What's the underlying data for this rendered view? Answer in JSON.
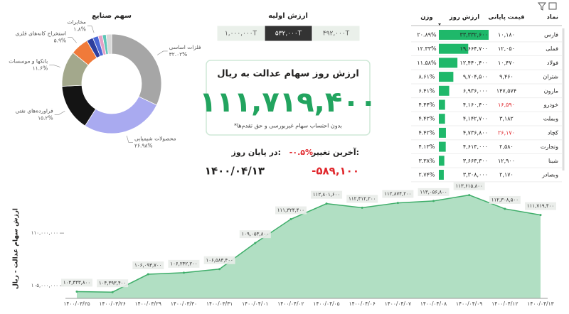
{
  "chart_data": [
    {
      "type": "pie",
      "title": "سهم صنایع",
      "categories": [
        "فلزات اساسی",
        "محصولات شیمیایی",
        "فراورده‌های نفتی",
        "بانکها و موسسات",
        "استخراج کانه‌های فلزی",
        null,
        "مخابرات",
        null,
        null,
        null
      ],
      "values": [
        32.02,
        26.98,
        15.2,
        11.6,
        5.9,
        2.1,
        1.8,
        1.4,
        1.2,
        1.8
      ],
      "value_labels": [
        "۳۲.۰۲%",
        "۲۶.۹۸%",
        "۱۵.۲%",
        "۱۱.۶%",
        "۵.۹%",
        null,
        "۱.۸%",
        null,
        null,
        null
      ],
      "colors": [
        "#a6a6a6",
        "#a9aaf0",
        "#141414",
        "#a3a88c",
        "#f07a3a",
        "#2d3f9e",
        "#4b68d6",
        "#e4a1c6",
        "#5cc6b7",
        "#d9d9d9"
      ]
    },
    {
      "type": "line",
      "y_label": "ارزش سهام عدالت - ریال",
      "categories": [
        "۱۴۰۰/۰۳/۲۵",
        "۱۴۰۰/۰۳/۲۶",
        "۱۴۰۰/۰۳/۲۹",
        "۱۴۰۰/۰۳/۳۰",
        "۱۴۰۰/۰۳/۳۱",
        "۱۴۰۰/۰۴/۰۱",
        "۱۴۰۰/۰۴/۰۲",
        "۱۴۰۰/۰۴/۰۵",
        "۱۴۰۰/۰۴/۰۶",
        "۱۴۰۰/۰۴/۰۷",
        "۱۴۰۰/۰۴/۰۸",
        "۱۴۰۰/۰۴/۰۹",
        "۱۴۰۰/۰۴/۱۲",
        "۱۴۰۰/۰۴/۱۳"
      ],
      "values": [
        104443800,
        104393400,
        106093700,
        106242200,
        106583400,
        109053800,
        111324400,
        112801600,
        112412200,
        112874200,
        113056800,
        113615800,
        112308500,
        111719400
      ],
      "value_labels": [
        "۱۰۴,۴۴۳,۸۰۰",
        "۱۰۴,۳۹۳,۴۰۰",
        "۱۰۶,۰۹۳,۷۰۰",
        "۱۰۶,۲۴۲,۲۰۰",
        "۱۰۶,۵۸۳,۴۰۰",
        "۱۰۹,۰۵۳,۸۰۰",
        "۱۱۱,۳۲۴,۴۰۰",
        "۱۱۲,۸۰۱,۶۰۰",
        "۱۱۲,۴۱۲,۲۰۰",
        "۱۱۲,۸۷۴,۲۰۰",
        "۱۱۳,۰۵۶,۸۰۰",
        "۱۱۳,۶۱۵,۸۰۰",
        "۱۱۲,۳۰۸,۵۰۰",
        "۱۱۱,۷۱۹,۴۰۰"
      ],
      "color": "#3fae6a",
      "fill": "#a9dcbd",
      "ylim": [
        103800000,
        114600000
      ],
      "yticks": [
        {
          "value": 105000000,
          "label": "۱۰۵,۰۰۰,۰۰۰"
        },
        {
          "value": 110000000,
          "label": "۱۱۰,۰۰۰,۰۰۰"
        }
      ]
    }
  ],
  "initial_value": {
    "title": "ارزش اولیه",
    "options": [
      "۱,۰۰۰,۰۰۰T",
      "۵۳۲,۰۰۰T",
      "۴۹۲,۰۰۰T"
    ],
    "selected": 1
  },
  "headline": {
    "title": "ارزش روز سهام عدالت به ریال",
    "value": "۱۱۱,۷۱۹,۴۰۰",
    "note": "*بدون احتساب سهام غیربورسی و حق تقدم‌ها"
  },
  "change": {
    "label": "آخرین تغییر:",
    "percent": "-۰.۵%",
    "amount": "-۵۸۹,۱۰۰",
    "date_label": "در پایان روز:",
    "date": "۱۴۰۰/۰۴/۱۳"
  },
  "table": {
    "columns": [
      "نماد",
      "قیمت پایانی",
      "ارزش روز",
      "وزن"
    ],
    "rows": [
      {
        "symbol": "فارس",
        "price": "۱۰,۱۸۰",
        "negative": false,
        "value": 33332600,
        "value_label": "۳۳,۳۳۲,۶۰۰",
        "weight": "۲۰.۸۹%"
      },
      {
        "symbol": "فملی",
        "price": "۱۲,۰۵۰",
        "negative": false,
        "value": 19664700,
        "value_label": "۱۹,۶۶۴,۷۰۰",
        "weight": "۱۲.۳۳%"
      },
      {
        "symbol": "فولاد",
        "price": "۱۰,۴۷۰",
        "negative": false,
        "value": 12440400,
        "value_label": "۱۲,۴۴۰,۴۰۰",
        "weight": "۱۱.۵۸%"
      },
      {
        "symbol": "شتران",
        "price": "۹,۴۶۰",
        "negative": false,
        "value": 9704500,
        "value_label": "۹,۷۰۴,۵۰۰",
        "weight": "۸.۶۱%"
      },
      {
        "symbol": "مارون",
        "price": "۱۴۷,۵۷۴",
        "negative": false,
        "value": 6936000,
        "value_label": "۶,۹۳۶,۰۰۰",
        "weight": "۶.۴۱%"
      },
      {
        "symbol": "خودرو",
        "price": "۱۶,۵۹۰",
        "negative": true,
        "value": 4160400,
        "value_label": "۴,۱۶۰,۴۰۰",
        "weight": "۴.۴۴%"
      },
      {
        "symbol": "وبملت",
        "price": "۳,۱۸۲",
        "negative": false,
        "value": 4142700,
        "value_label": "۴,۱۴۲,۷۰۰",
        "weight": "۴.۴۲%"
      },
      {
        "symbol": "کچاد",
        "price": "۲۶,۱۷۰",
        "negative": true,
        "value": 4736800,
        "value_label": "۴,۷۳۶,۸۰۰",
        "weight": "۴.۴۲%"
      },
      {
        "symbol": "وتجارت",
        "price": "۲,۵۸۰",
        "negative": false,
        "value": 4613000,
        "value_label": "۴,۶۱۳,۰۰۰",
        "weight": "۴.۱۳%"
      },
      {
        "symbol": "شبنا",
        "price": "۱۲,۹۰۰",
        "negative": false,
        "value": 3663300,
        "value_label": "۳,۶۶۳,۳۰۰",
        "weight": "۳.۳۸%"
      },
      {
        "symbol": "وبصادر",
        "price": "۲,۱۷۰",
        "negative": false,
        "value": 3308000,
        "value_label": "۳,۳۰۸,۰۰۰",
        "weight": "۲.۷۴%"
      }
    ]
  }
}
